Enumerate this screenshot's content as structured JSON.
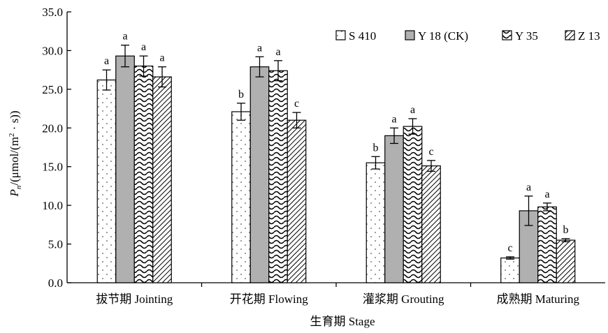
{
  "chart_data": {
    "type": "bar",
    "xlabel": "生育期 Stage",
    "ylabel": "Pn/(μmol/(m²·s))",
    "ylim": [
      0,
      35
    ],
    "yticks": [
      "0.0",
      "5.0",
      "10.0",
      "15.0",
      "20.0",
      "25.0",
      "30.0",
      "35.0"
    ],
    "categories": [
      "拔节期 Jointing",
      "开花期 Flowing",
      "灌浆期 Grouting",
      "成熟期 Maturing"
    ],
    "legend_position": "top-right",
    "series": [
      {
        "name": "S 410",
        "values": [
          26.2,
          22.1,
          15.5,
          3.2
        ],
        "errors": [
          1.3,
          1.1,
          0.8,
          0.15
        ],
        "letters": [
          "a",
          "b",
          "b",
          "c"
        ]
      },
      {
        "name": "Y 18 (CK)",
        "values": [
          29.3,
          27.9,
          19.0,
          9.3
        ],
        "errors": [
          1.4,
          1.3,
          1.0,
          1.9
        ],
        "letters": [
          "a",
          "a",
          "a",
          "a"
        ]
      },
      {
        "name": "Y 35",
        "values": [
          28.0,
          27.4,
          20.2,
          9.8
        ],
        "errors": [
          1.3,
          1.3,
          1.0,
          0.5
        ],
        "letters": [
          "a",
          "a",
          "a",
          "a"
        ]
      },
      {
        "name": "Z 13",
        "values": [
          26.6,
          21.0,
          15.1,
          5.5
        ],
        "errors": [
          1.3,
          1.0,
          0.7,
          0.2
        ],
        "letters": [
          "a",
          "c",
          "c",
          "b"
        ]
      }
    ],
    "fills": [
      "#ffffff",
      "#b0b0b0",
      "#ffffff",
      "#ffffff"
    ],
    "patterns": [
      "dots",
      "solid",
      "waves",
      "diagonal"
    ]
  }
}
